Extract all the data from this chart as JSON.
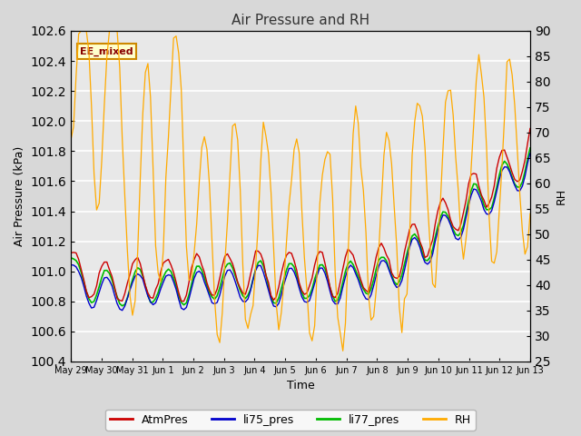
{
  "title": "Air Pressure and RH",
  "xlabel": "Time",
  "ylabel_left": "Air Pressure (kPa)",
  "ylabel_right": "RH",
  "annotation": "EE_mixed",
  "ylim_left": [
    100.4,
    102.6
  ],
  "ylim_right": [
    25,
    90
  ],
  "yticks_left": [
    100.4,
    100.6,
    100.8,
    101.0,
    101.2,
    101.4,
    101.6,
    101.8,
    102.0,
    102.2,
    102.4,
    102.6
  ],
  "yticks_right": [
    25,
    30,
    35,
    40,
    45,
    50,
    55,
    60,
    65,
    70,
    75,
    80,
    85,
    90
  ],
  "colors": {
    "AtmPres": "#cc0000",
    "li75_pres": "#0000cc",
    "li77_pres": "#00bb00",
    "RH": "#ffaa00"
  },
  "legend_labels": [
    "AtmPres",
    "li75_pres",
    "li77_pres",
    "RH"
  ],
  "bg_color": "#d8d8d8",
  "plot_bg_color": "#e8e8e8",
  "annotation_bg": "#ffffcc",
  "annotation_border": "#cc8800",
  "annotation_text_color": "#880000",
  "grid_color": "#ffffff",
  "title_color": "#333333",
  "figsize": [
    6.4,
    4.8
  ],
  "dpi": 100
}
